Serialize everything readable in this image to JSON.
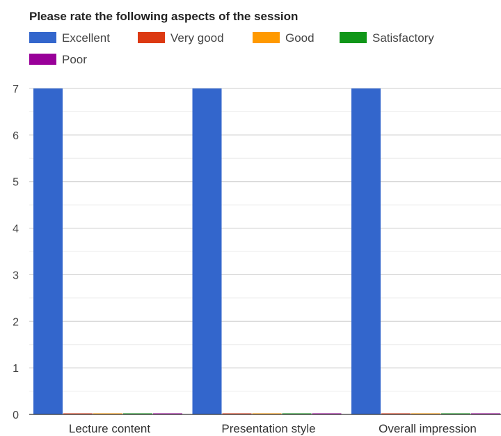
{
  "chart_data": {
    "type": "bar",
    "title": "Please rate the following aspects of the session",
    "categories": [
      "Lecture content",
      "Presentation style",
      "Overall impression"
    ],
    "series": [
      {
        "name": "Excellent",
        "values": [
          7,
          7,
          7
        ],
        "color": "#3366cc"
      },
      {
        "name": "Very good",
        "values": [
          0,
          0,
          0
        ],
        "color": "#dc3912"
      },
      {
        "name": "Good",
        "values": [
          0,
          0,
          0
        ],
        "color": "#ff9900"
      },
      {
        "name": "Satisfactory",
        "values": [
          0,
          0,
          0
        ],
        "color": "#109618"
      },
      {
        "name": "Poor",
        "values": [
          0,
          0,
          0
        ],
        "color": "#990099"
      }
    ],
    "yticks": [
      "0",
      "1",
      "2",
      "3",
      "4",
      "5",
      "6",
      "7"
    ],
    "ylim": [
      0,
      7
    ],
    "grid": true,
    "legend_position": "top"
  }
}
